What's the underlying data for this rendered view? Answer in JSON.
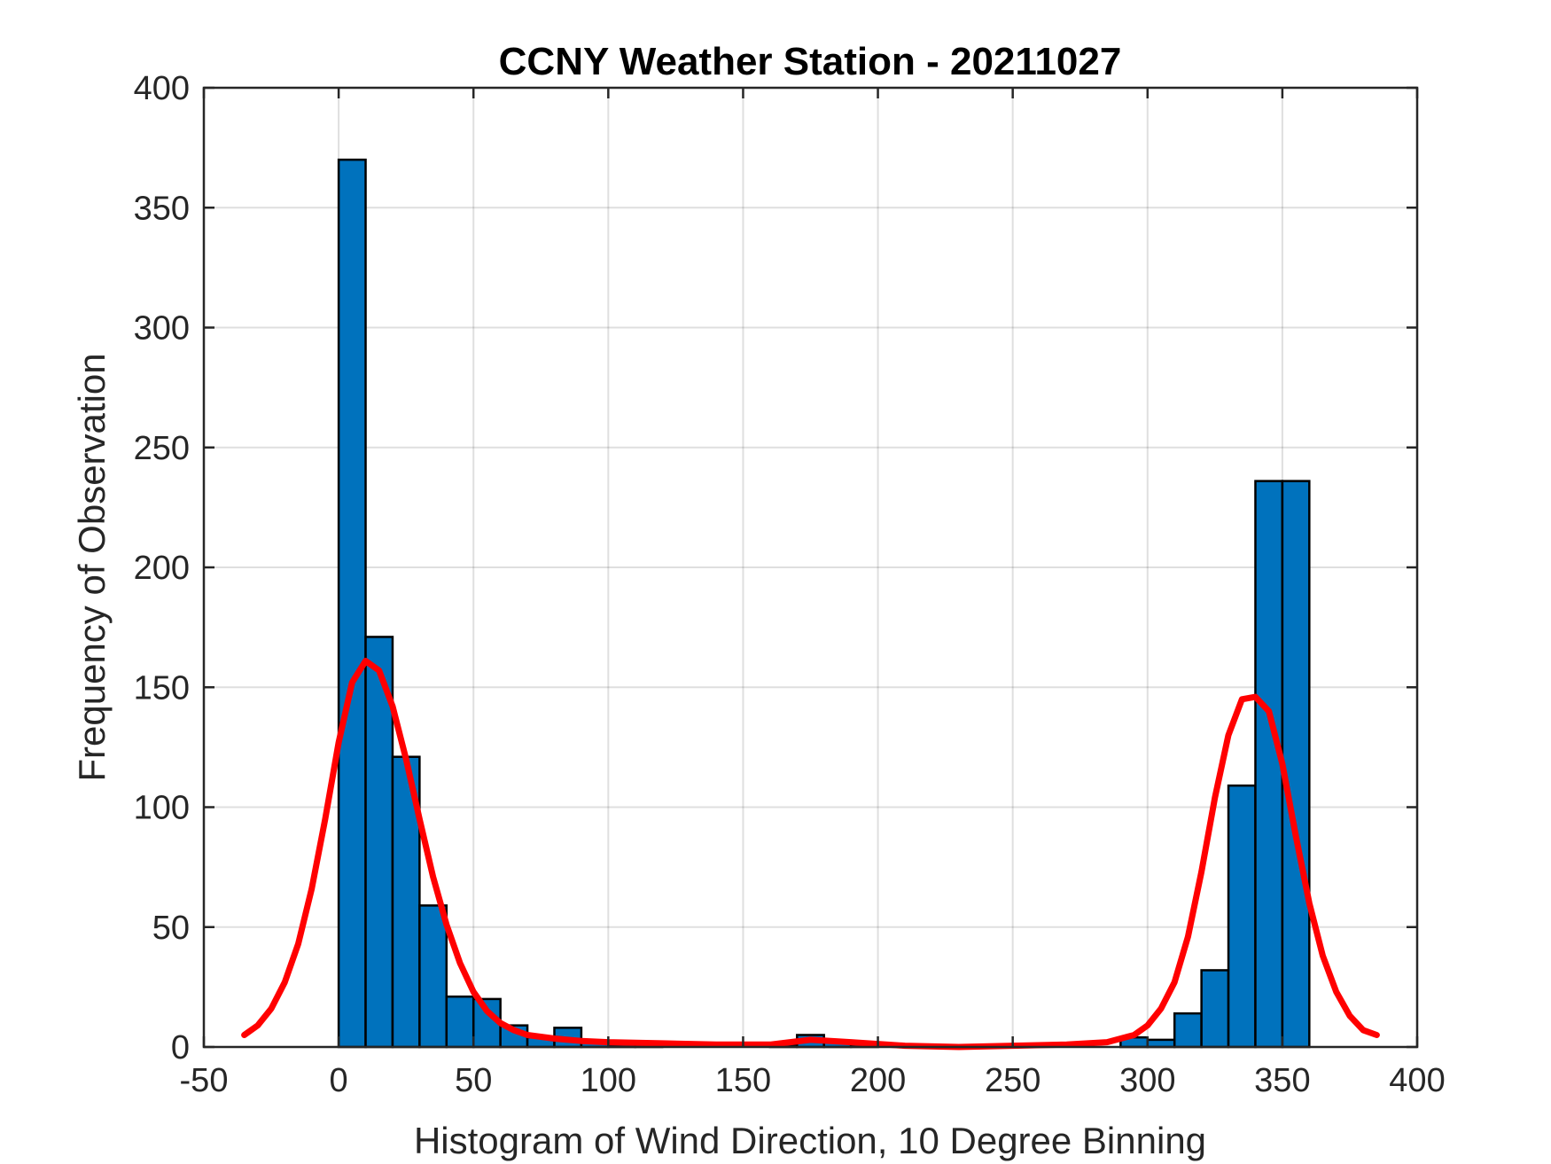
{
  "chart_data": {
    "type": "bar",
    "title": "CCNY Weather Station - 20211027",
    "xlabel": "Histogram of Wind Direction, 10 Degree Binning",
    "ylabel": "Frequency of Observation",
    "xlim": [
      -50,
      400
    ],
    "ylim": [
      0,
      400
    ],
    "xticks": [
      -50,
      0,
      50,
      100,
      150,
      200,
      250,
      300,
      350,
      400
    ],
    "yticks": [
      0,
      50,
      100,
      150,
      200,
      250,
      300,
      350,
      400
    ],
    "grid": true,
    "bar_color": "#0072BD",
    "curve_color": "#FF0000",
    "bin_width": 10,
    "bins": [
      {
        "start": 0,
        "count": 370
      },
      {
        "start": 10,
        "count": 171
      },
      {
        "start": 20,
        "count": 121
      },
      {
        "start": 30,
        "count": 59
      },
      {
        "start": 40,
        "count": 21
      },
      {
        "start": 50,
        "count": 20
      },
      {
        "start": 60,
        "count": 9
      },
      {
        "start": 70,
        "count": 4
      },
      {
        "start": 80,
        "count": 8
      },
      {
        "start": 90,
        "count": 2
      },
      {
        "start": 100,
        "count": 1
      },
      {
        "start": 110,
        "count": 1
      },
      {
        "start": 120,
        "count": 0
      },
      {
        "start": 130,
        "count": 0
      },
      {
        "start": 140,
        "count": 0
      },
      {
        "start": 150,
        "count": 0
      },
      {
        "start": 160,
        "count": 1
      },
      {
        "start": 170,
        "count": 5
      },
      {
        "start": 180,
        "count": 2
      },
      {
        "start": 190,
        "count": 1
      },
      {
        "start": 200,
        "count": 0
      },
      {
        "start": 210,
        "count": 0
      },
      {
        "start": 220,
        "count": 0
      },
      {
        "start": 230,
        "count": 0
      },
      {
        "start": 240,
        "count": 0
      },
      {
        "start": 250,
        "count": 0
      },
      {
        "start": 260,
        "count": 0
      },
      {
        "start": 270,
        "count": 0
      },
      {
        "start": 280,
        "count": 0
      },
      {
        "start": 290,
        "count": 4
      },
      {
        "start": 300,
        "count": 3
      },
      {
        "start": 310,
        "count": 14
      },
      {
        "start": 320,
        "count": 32
      },
      {
        "start": 330,
        "count": 109
      },
      {
        "start": 340,
        "count": 236
      },
      {
        "start": 350,
        "count": 236
      }
    ],
    "fit_curve": {
      "x": [
        -35,
        -30,
        -25,
        -20,
        -15,
        -10,
        -5,
        0,
        5,
        10,
        15,
        20,
        25,
        30,
        35,
        40,
        45,
        50,
        55,
        60,
        65,
        70,
        80,
        90,
        100,
        120,
        140,
        160,
        175,
        190,
        210,
        230,
        250,
        270,
        285,
        295,
        300,
        305,
        310,
        315,
        320,
        325,
        330,
        335,
        340,
        345,
        350,
        355,
        360,
        365,
        370,
        375,
        380,
        385
      ],
      "y": [
        5,
        9,
        16,
        27,
        43,
        66,
        95,
        127,
        152,
        161,
        157,
        142,
        120,
        95,
        71,
        51,
        35,
        23,
        15,
        10,
        7,
        5,
        3.5,
        2.5,
        2,
        1.5,
        1,
        1,
        3,
        2,
        0.5,
        0,
        0.5,
        1,
        2,
        5,
        9,
        16,
        27,
        46,
        73,
        104,
        130,
        145,
        146,
        140,
        118,
        88,
        60,
        38,
        23,
        13,
        7,
        5
      ]
    }
  }
}
